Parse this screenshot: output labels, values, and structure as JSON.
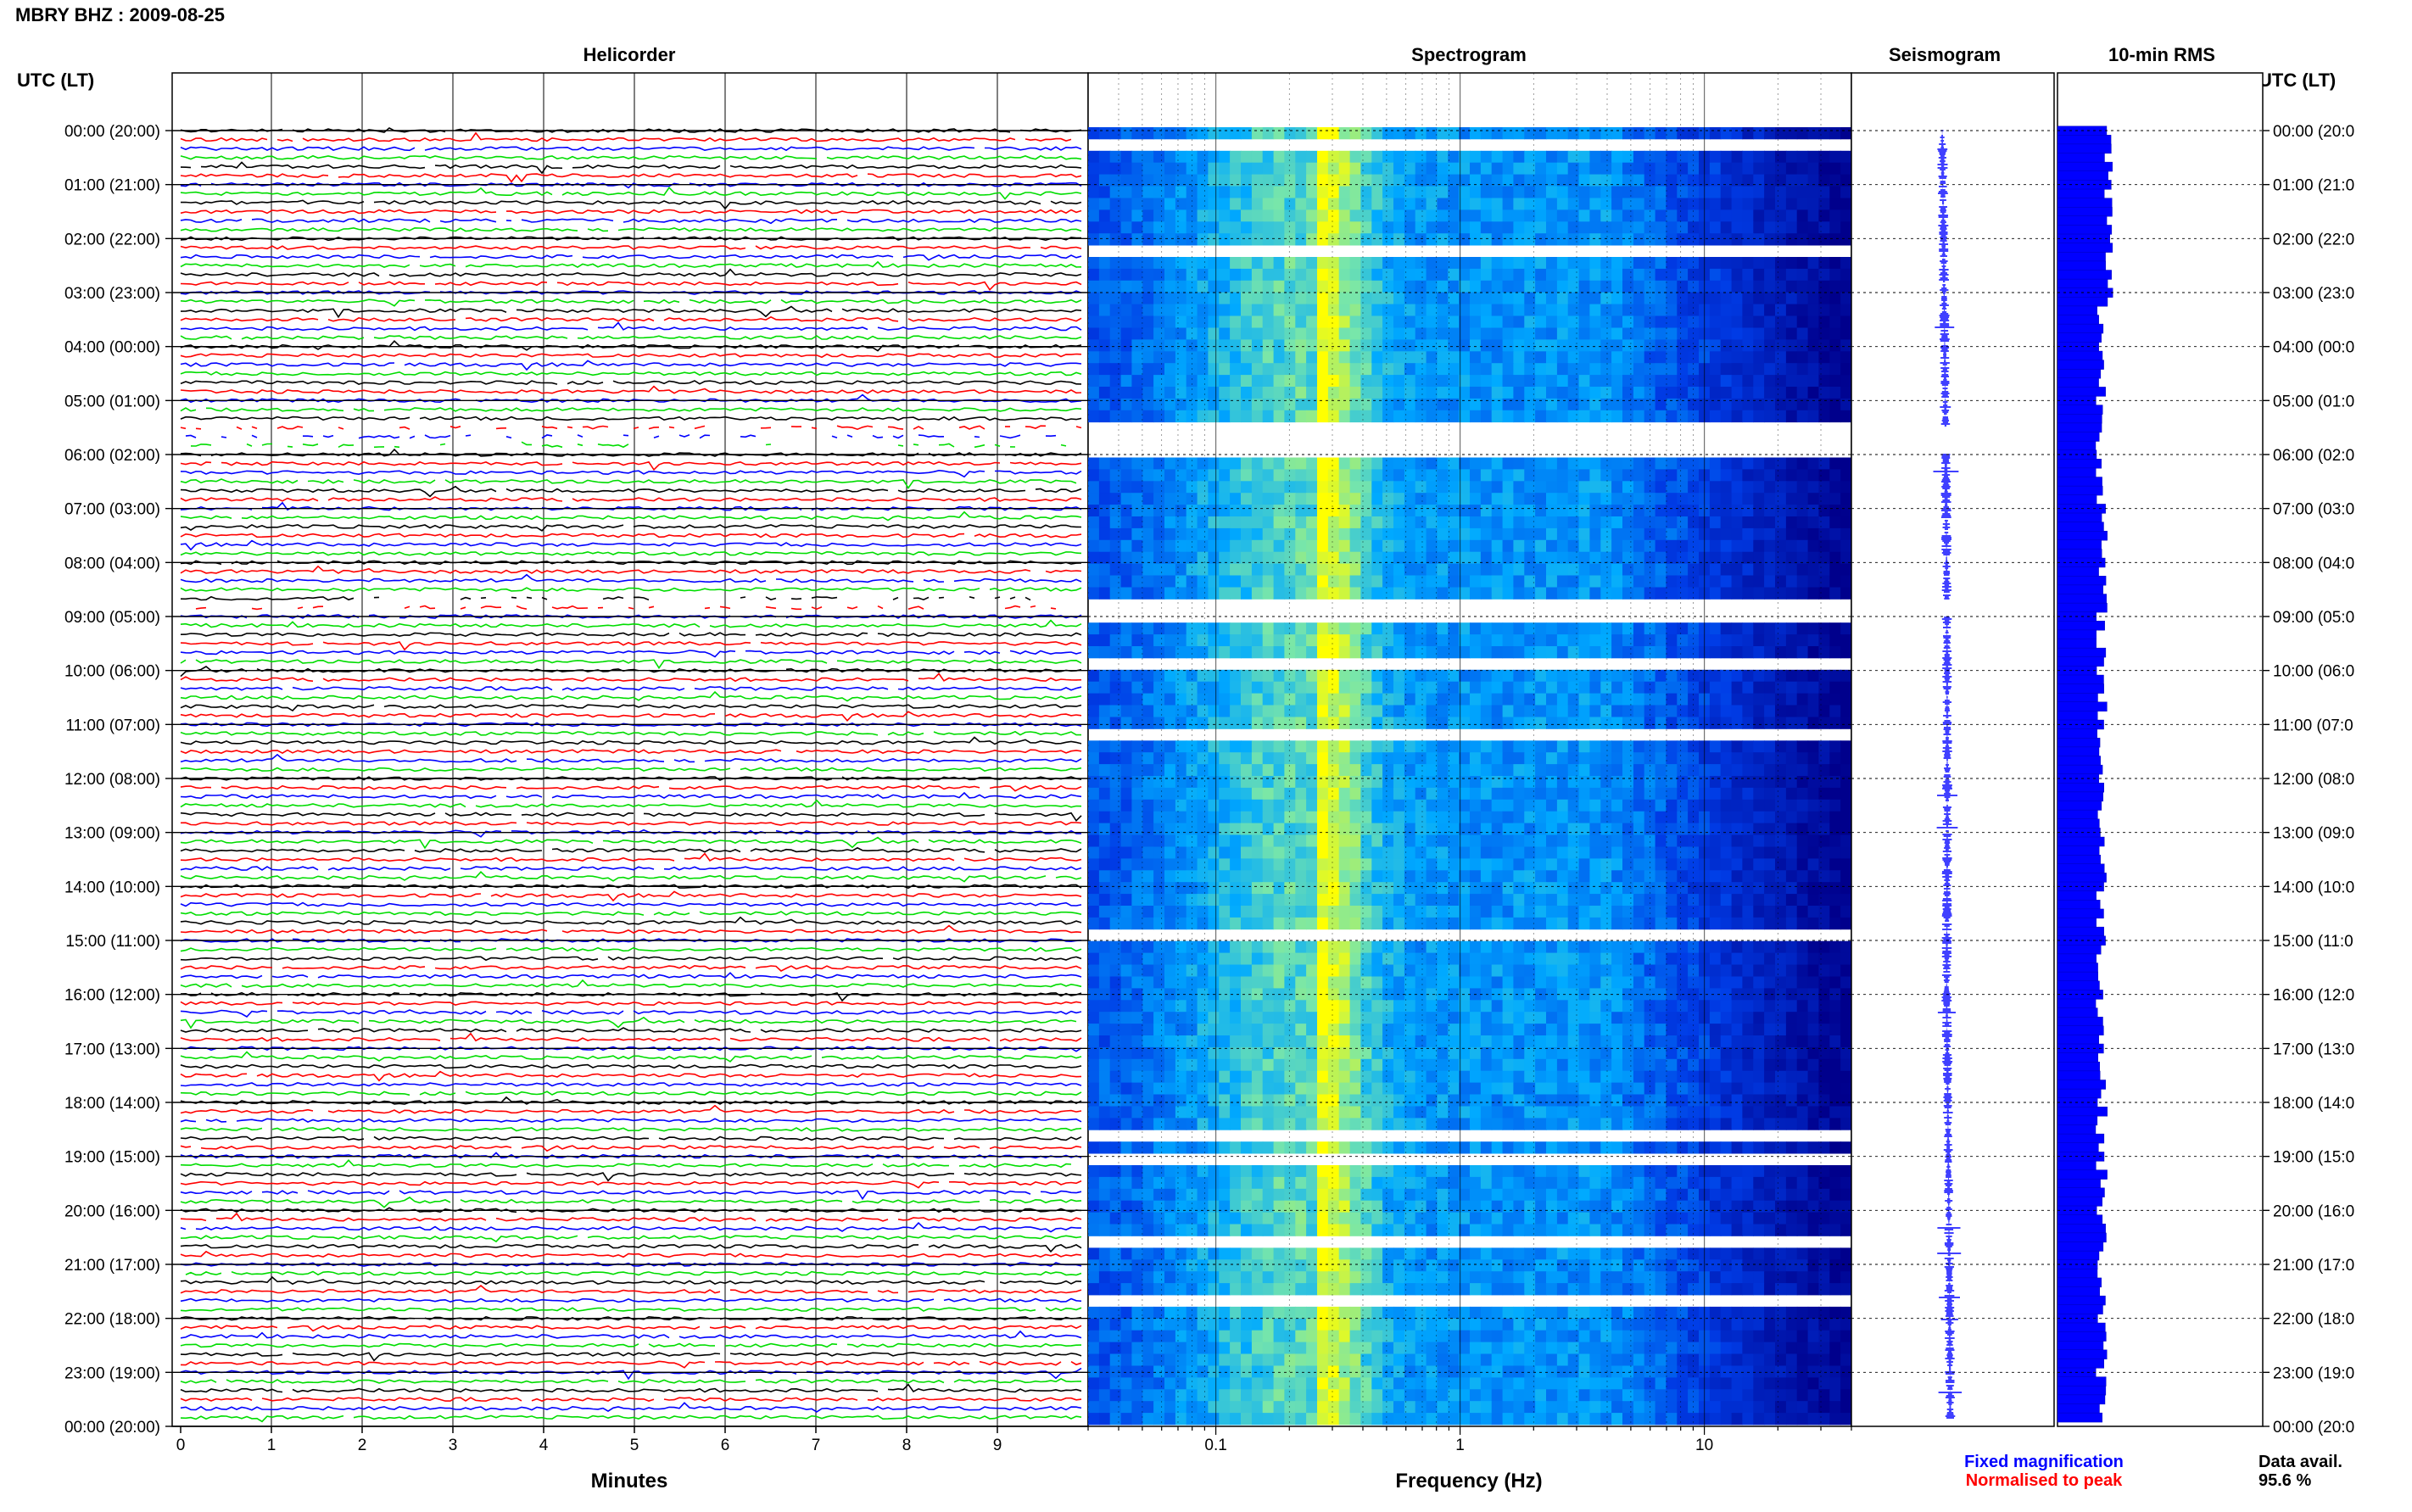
{
  "header": {
    "title": "MBRY BHZ : 2009-08-25"
  },
  "helicorder": {
    "title": "Helicorder",
    "axis_left_label": "UTC (LT)",
    "xlabel": "Minutes",
    "x_ticks": [
      "0",
      "1",
      "2",
      "3",
      "4",
      "5",
      "6",
      "7",
      "8",
      "9"
    ],
    "trace_colors": [
      "#000000",
      "#ff0000",
      "#0000ff",
      "#00dd00"
    ],
    "rows_per_hour": 6,
    "hours": 24
  },
  "spectrogram": {
    "title": "Spectrogram",
    "xlabel": "Frequency (Hz)",
    "x_ticks": [
      "0.1",
      "1",
      "10"
    ],
    "scale": "log",
    "xlim": [
      0.03,
      40
    ]
  },
  "seismogram": {
    "title": "Seismogram"
  },
  "rms": {
    "title": "10-min RMS"
  },
  "right_axis": {
    "label": "UTC (LT)"
  },
  "time_labels": [
    "00:00 (20:00)",
    "01:00 (21:00)",
    "02:00 (22:00)",
    "03:00 (23:00)",
    "04:00 (00:00)",
    "05:00 (01:00)",
    "06:00 (02:00)",
    "07:00 (03:00)",
    "08:00 (04:00)",
    "09:00 (05:00)",
    "10:00 (06:00)",
    "11:00 (07:00)",
    "12:00 (08:00)",
    "13:00 (09:00)",
    "14:00 (10:00)",
    "15:00 (11:00)",
    "16:00 (12:00)",
    "17:00 (13:00)",
    "18:00 (14:00)",
    "19:00 (15:00)",
    "20:00 (16:00)",
    "21:00 (17:00)",
    "22:00 (18:00)",
    "23:00 (19:00)",
    "00:00 (20:00)"
  ],
  "right_time_labels": [
    "00:00 (20:0",
    "01:00 (21:0",
    "02:00 (22:0",
    "03:00 (23:0",
    "04:00 (00:0",
    "05:00 (01:0",
    "06:00 (02:0",
    "07:00 (03:0",
    "08:00 (04:0",
    "09:00 (05:0",
    "10:00 (06:0",
    "11:00 (07:0",
    "12:00 (08:0",
    "13:00 (09:0",
    "14:00 (10:0",
    "15:00 (11:0",
    "16:00 (12:0",
    "17:00 (13:0",
    "18:00 (14:0",
    "19:00 (15:0",
    "20:00 (16:0",
    "21:00 (17:0",
    "22:00 (18:0",
    "23:00 (19:0",
    "00:00 (20:0"
  ],
  "footer": {
    "fixed_magnification": "Fixed magnification",
    "normalised": "Normalised to peak",
    "data_avail_label": "Data avail.",
    "data_avail_value": "95.6 %"
  },
  "colors": {
    "fixed": "#0000ff",
    "normalised": "#ff0000",
    "rms_bar": "#0000ff",
    "spectro_low": "#00008b",
    "spectro_high": "#ffff00"
  },
  "chart_data": {
    "type": "heatmap",
    "panels": [
      "Helicorder",
      "Spectrogram",
      "Seismogram",
      "10-min RMS"
    ],
    "time_axis": "UTC (LT)",
    "data_gaps_hours": [
      [
        5.5,
        6.0
      ],
      [
        8.7,
        9.0
      ]
    ],
    "spectro_peak_hz": 0.25,
    "data_availability_percent": 95.6
  }
}
